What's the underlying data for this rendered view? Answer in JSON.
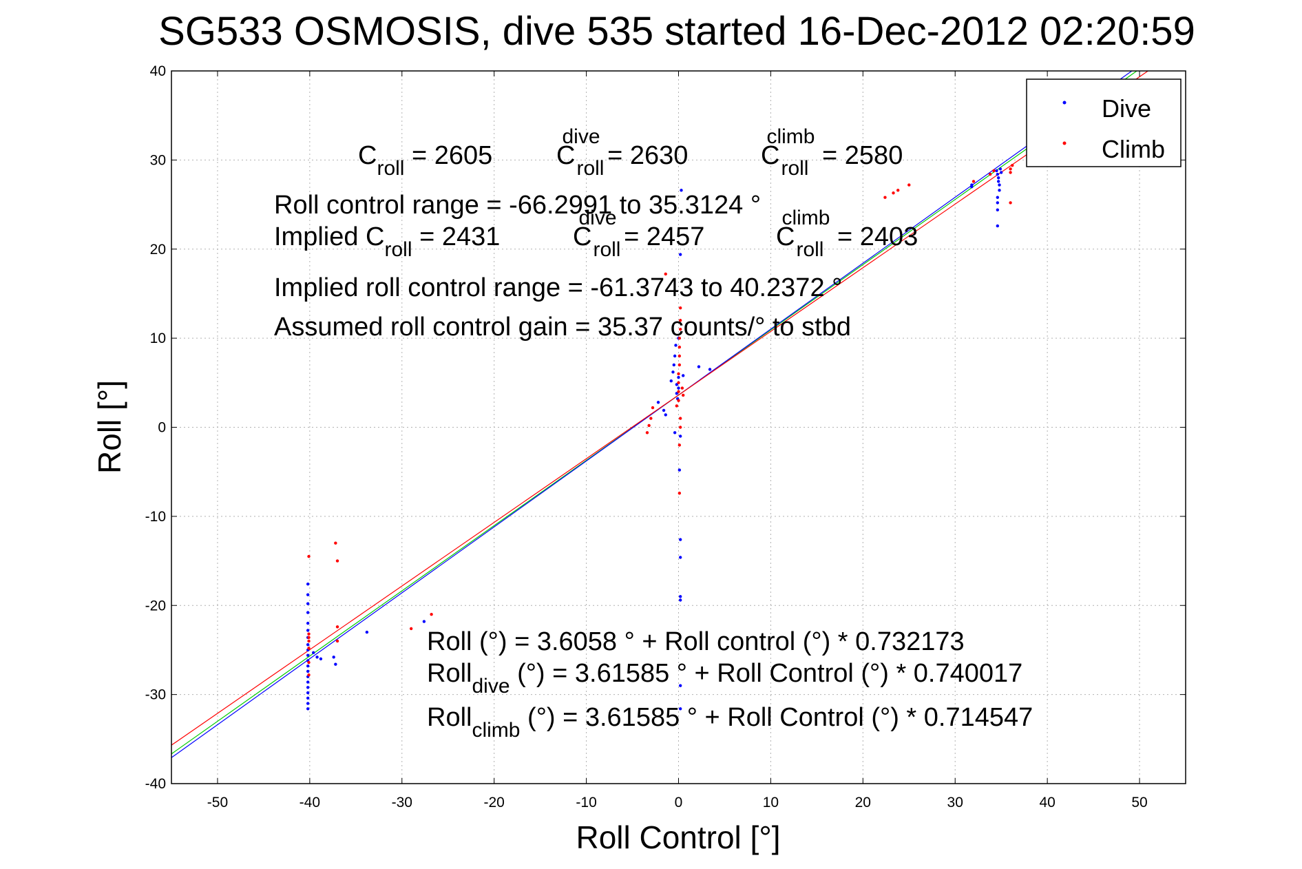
{
  "chart_data": {
    "type": "scatter",
    "title": "SG533 OSMOSIS, dive 535 started 16-Dec-2012 02:20:59",
    "xlabel": "Roll Control [°]",
    "ylabel": "Roll [°]",
    "xlim": [
      -55,
      55
    ],
    "ylim": [
      -40,
      40
    ],
    "xticks": [
      -50,
      -40,
      -30,
      -20,
      -10,
      0,
      10,
      20,
      30,
      40,
      50
    ],
    "yticks": [
      -40,
      -30,
      -20,
      -10,
      0,
      10,
      20,
      30,
      40
    ],
    "grid": true,
    "legend_position": "top-right",
    "legend": [
      {
        "label": "Dive",
        "color": "#0000ff"
      },
      {
        "label": "Climb",
        "color": "#ff0000"
      }
    ],
    "series": [
      {
        "name": "Dive",
        "color": "#0000ff",
        "points": [
          [
            -40.2,
            -17.6
          ],
          [
            -40.2,
            -18.8
          ],
          [
            -40.2,
            -19.8
          ],
          [
            -40.2,
            -20.8
          ],
          [
            -40.2,
            -22.0
          ],
          [
            -40.2,
            -22.8
          ],
          [
            -40.2,
            -23.6
          ],
          [
            -40.2,
            -24.4
          ],
          [
            -40.2,
            -25.0
          ],
          [
            -40.2,
            -25.6
          ],
          [
            -40.2,
            -26.2
          ],
          [
            -40.2,
            -26.8
          ],
          [
            -40.2,
            -27.4
          ],
          [
            -40.2,
            -28.0
          ],
          [
            -40.2,
            -28.6
          ],
          [
            -40.2,
            -29.2
          ],
          [
            -40.2,
            -29.8
          ],
          [
            -40.2,
            -30.4
          ],
          [
            -40.2,
            -31.0
          ],
          [
            -40.2,
            -31.6
          ],
          [
            -39.6,
            -25.3
          ],
          [
            -39.2,
            -25.8
          ],
          [
            -38.8,
            -26.0
          ],
          [
            -37.4,
            -25.8
          ],
          [
            -37.2,
            -26.6
          ],
          [
            -33.8,
            -23.0
          ],
          [
            -27.6,
            -21.8
          ],
          [
            -2.2,
            2.8
          ],
          [
            -1.6,
            1.9
          ],
          [
            -1.4,
            1.4
          ],
          [
            -0.8,
            5.2
          ],
          [
            -0.6,
            6.2
          ],
          [
            -0.5,
            7.0
          ],
          [
            -0.4,
            8.0
          ],
          [
            -0.3,
            9.2
          ],
          [
            -0.2,
            3.8
          ],
          [
            -0.2,
            4.8
          ],
          [
            -0.1,
            3.2
          ],
          [
            -0.4,
            -0.6
          ],
          [
            0.0,
            10.0
          ],
          [
            0.0,
            4.4
          ],
          [
            0.0,
            5.6
          ],
          [
            0.2,
            -1.0
          ],
          [
            0.2,
            19.4
          ],
          [
            0.3,
            26.6
          ],
          [
            0.1,
            -4.8
          ],
          [
            0.2,
            -12.6
          ],
          [
            0.2,
            -14.6
          ],
          [
            0.2,
            -19.0
          ],
          [
            0.2,
            -19.4
          ],
          [
            0.2,
            -29.0
          ],
          [
            0.2,
            -31.6
          ],
          [
            0.5,
            5.8
          ],
          [
            2.2,
            6.8
          ],
          [
            3.4,
            6.5
          ],
          [
            31.8,
            27.0
          ],
          [
            31.8,
            27.2
          ],
          [
            34.5,
            28.8
          ],
          [
            34.6,
            28.4
          ],
          [
            34.7,
            28.0
          ],
          [
            34.7,
            27.6
          ],
          [
            34.8,
            27.2
          ],
          [
            34.8,
            26.6
          ],
          [
            34.6,
            25.8
          ],
          [
            34.6,
            25.2
          ],
          [
            34.6,
            24.4
          ],
          [
            34.6,
            22.6
          ],
          [
            34.9,
            29.0
          ],
          [
            35.0,
            28.6
          ]
        ]
      },
      {
        "name": "Climb",
        "color": "#ff0000",
        "points": [
          [
            -40.1,
            -14.5
          ],
          [
            -40.1,
            -23.2
          ],
          [
            -40.1,
            -23.6
          ],
          [
            -40.1,
            -24.0
          ],
          [
            -40.1,
            -24.8
          ],
          [
            -40.1,
            -26.4
          ],
          [
            -40.1,
            -27.8
          ],
          [
            -37.2,
            -13.0
          ],
          [
            -37.0,
            -15.0
          ],
          [
            -37.0,
            -22.4
          ],
          [
            -37.0,
            -24.0
          ],
          [
            -29.0,
            -22.6
          ],
          [
            -26.8,
            -21.0
          ],
          [
            -3.4,
            -0.6
          ],
          [
            -3.2,
            0.2
          ],
          [
            -3.0,
            1.0
          ],
          [
            -2.8,
            2.2
          ],
          [
            -1.4,
            17.2
          ],
          [
            -0.2,
            2.4
          ],
          [
            0.0,
            3.0
          ],
          [
            0.0,
            4.0
          ],
          [
            0.0,
            5.0
          ],
          [
            0.0,
            6.0
          ],
          [
            0.1,
            7.0
          ],
          [
            0.1,
            8.0
          ],
          [
            0.1,
            9.0
          ],
          [
            0.1,
            10.0
          ],
          [
            0.2,
            11.0
          ],
          [
            0.2,
            12.0
          ],
          [
            0.2,
            13.4
          ],
          [
            0.2,
            1.0
          ],
          [
            0.2,
            0.0
          ],
          [
            0.1,
            -2.0
          ],
          [
            0.1,
            -7.4
          ],
          [
            0.4,
            4.4
          ],
          [
            0.5,
            3.6
          ],
          [
            22.4,
            25.8
          ],
          [
            23.3,
            26.3
          ],
          [
            23.8,
            26.6
          ],
          [
            25.0,
            27.2
          ],
          [
            32.0,
            27.6
          ],
          [
            33.8,
            28.4
          ],
          [
            34.2,
            28.8
          ],
          [
            36.0,
            29.0
          ],
          [
            36.0,
            28.6
          ],
          [
            36.0,
            25.2
          ],
          [
            36.2,
            29.4
          ]
        ]
      }
    ],
    "fit_lines": [
      {
        "color": "#00cc00",
        "intercept": 3.6058,
        "slope": 0.732173
      },
      {
        "color": "#0000ff",
        "intercept": 3.61585,
        "slope": 0.740017
      },
      {
        "color": "#ff0000",
        "intercept": 3.61585,
        "slope": 0.714547
      }
    ],
    "annotations": {
      "c_roll": {
        "base": "C",
        "sub": "roll",
        "value": " = 2605"
      },
      "c_roll_dive": {
        "base": "C",
        "sub": "roll",
        "sup": "dive",
        "value": " = 2630"
      },
      "c_roll_climb": {
        "base": "C",
        "sub": "roll",
        "sup": "climb",
        "value": " = 2580"
      },
      "range_line": "Roll control range = -66.2991 to 35.3124 °",
      "implied_prefix": "Implied C",
      "implied_sub": "roll",
      "implied_value": " = 2431",
      "implied_dive": {
        "base": "C",
        "sub": "roll",
        "sup": "dive",
        "value": " = 2457"
      },
      "implied_climb": {
        "base": "C",
        "sub": "roll",
        "sup": "climb",
        "value": " = 2403"
      },
      "implied_range_line": "Implied roll control range = -61.3743 to 40.2372 °",
      "gain_line": "Assumed roll control gain = 35.37 counts/° to stbd",
      "fit_line": "Roll (°) = 3.6058 ° + Roll control (°) * 0.732173",
      "fit_dive": {
        "base": "Roll",
        "sub": "dive",
        "rest": " (°) = 3.61585 ° + Roll Control (°) * 0.740017"
      },
      "fit_climb": {
        "base": "Roll",
        "sub": "climb",
        "rest": " (°) = 3.61585 ° + Roll Control (°) * 0.714547"
      }
    }
  }
}
